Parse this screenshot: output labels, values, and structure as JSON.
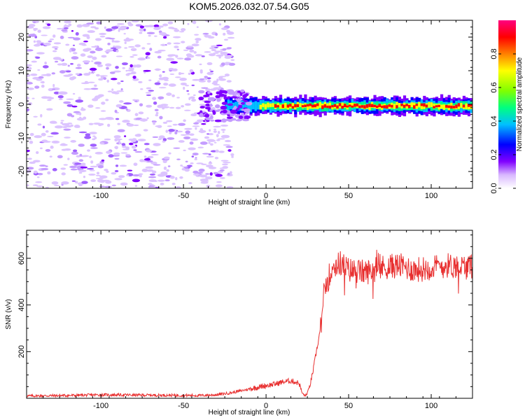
{
  "title": "KOM5.2026.032.07.54.G05",
  "chart_data": [
    {
      "type": "heatmap",
      "xlabel": "Height of straight line (km)",
      "ylabel": "Frequency (Hz)",
      "xlim": [
        -145,
        125
      ],
      "ylim": [
        -25,
        25
      ],
      "xticks": [
        -100,
        -50,
        0,
        50,
        100
      ],
      "yticks": [
        -20,
        -10,
        0,
        10,
        20
      ],
      "colorbar": {
        "label": "Normalized spectral amplitude",
        "range": [
          0,
          1
        ],
        "ticks": [
          0.0,
          0.2,
          0.4,
          0.6,
          0.8
        ],
        "tick_labels": [
          "0.0",
          "0.2",
          "0.4",
          "0.6",
          "0.8"
        ],
        "colors": [
          "#ffffff",
          "#d8b8ff",
          "#8000ff",
          "#0000ff",
          "#00c0ff",
          "#00ff80",
          "#80ff00",
          "#ffff00",
          "#ff8000",
          "#ff0000",
          "#ff0080"
        ]
      },
      "ridge": {
        "description_values": "strong signal near 0 Hz for heights above about -25 km",
        "height_start": -25,
        "height_end": 125,
        "frequency": -0.5,
        "amplitude_peak": 0.9
      }
    },
    {
      "type": "line",
      "xlabel": "Height of straight line (km)",
      "ylabel": "SNR (v/v)",
      "xlim": [
        -145,
        125
      ],
      "ylim": [
        0,
        720
      ],
      "xticks": [
        -100,
        -50,
        0,
        50,
        100
      ],
      "yticks": [
        200,
        400,
        600
      ],
      "color": "#e83030",
      "series": [
        {
          "name": "SNR",
          "x": [
            -145,
            -120,
            -100,
            -80,
            -60,
            -40,
            -30,
            -20,
            -10,
            0,
            5,
            10,
            15,
            20,
            22,
            24,
            26,
            28,
            30,
            32,
            34,
            36,
            40,
            45,
            50,
            60,
            70,
            80,
            90,
            100,
            110,
            125
          ],
          "y": [
            10,
            12,
            15,
            14,
            13,
            12,
            15,
            25,
            40,
            55,
            60,
            70,
            75,
            65,
            20,
            10,
            40,
            100,
            180,
            260,
            350,
            480,
            560,
            580,
            550,
            540,
            560,
            570,
            550,
            560,
            570,
            560
          ]
        }
      ]
    }
  ]
}
